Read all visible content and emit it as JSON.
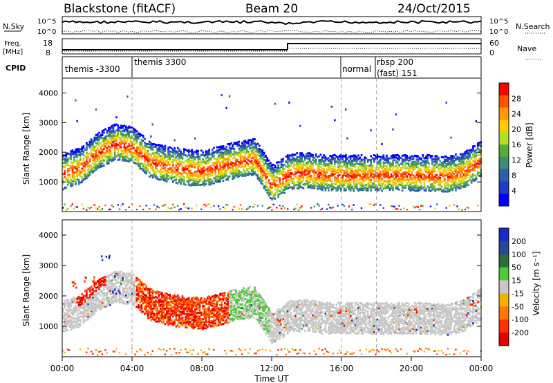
{
  "header": {
    "station": "Blackstone (fitACF)",
    "beam": "Beam 20",
    "date": "24/Oct/2015"
  },
  "strips": {
    "nsky_label": "N.Sky",
    "nsearch_label": "N.Search",
    "nsky_ticks": [
      "10^5",
      "10^0"
    ],
    "nsearch_ticks": [
      "10^5",
      "10^0"
    ],
    "freq_label_1": "Freq.",
    "freq_label_2": "[MHz]",
    "freq_ticks": [
      "18",
      "8"
    ],
    "nave_label": "Nave",
    "nave_ticks": [
      "60",
      "0"
    ],
    "cpid_label": "CPID",
    "cpid_segments": [
      {
        "label": "themis -3300",
        "start_hour": 0.0,
        "end_hour": 4.0
      },
      {
        "label": "themis 3300",
        "start_hour": 4.0,
        "end_hour": 16.0
      },
      {
        "label": "normal",
        "start_hour": 16.0,
        "end_hour": 18.0
      },
      {
        "label": "rbsp 200",
        "label2": "(fast) 151",
        "start_hour": 18.0,
        "end_hour": 24.0
      }
    ]
  },
  "panels": {
    "power": {
      "ylabel": "Slant Range [km]",
      "cbar_label": "Power [dB]",
      "cbar_ticks": [
        "28",
        "24",
        "20",
        "16",
        "12",
        "8",
        "4"
      ],
      "cbar_colors": [
        "#ff0000",
        "#ff5500",
        "#ff9900",
        "#ffcc00",
        "#b4dc28",
        "#5aaa3c",
        "#3c8c78",
        "#2c5fa8",
        "#1e3cc8",
        "#0000ff"
      ]
    },
    "velocity": {
      "ylabel": "Slant Range [km]",
      "cbar_label": "Velocity [m s⁻¹]",
      "cbar_ticks": [
        "200",
        "100",
        "50",
        "15",
        "-15",
        "-50",
        "-100",
        "-200"
      ],
      "cbar_colors": [
        "#1e28c8",
        "#28469a",
        "#2c6e3c",
        "#50c83c",
        "#c8c8c8",
        "#f0b400",
        "#ff7800",
        "#ff3200",
        "#e60000"
      ]
    },
    "y_ticks": [
      "4000",
      "3000",
      "2000",
      "1000"
    ]
  },
  "xaxis": {
    "label": "Time UT",
    "ticks": [
      "00:00",
      "04:00",
      "08:00",
      "12:00",
      "16:00",
      "20:00",
      "00:00"
    ]
  },
  "chart_data": [
    {
      "type": "heatmap",
      "title": "Blackstone (fitACF)",
      "subtitle": "Beam 20 24/Oct/2015",
      "xlabel": "Time UT",
      "ylabel": "Slant Range [km]",
      "xlim": [
        0,
        24
      ],
      "ylim": [
        0,
        4500
      ],
      "colorbar": {
        "label": "Power [dB]",
        "range": [
          0,
          30
        ]
      },
      "series": [
        {
          "x": [
            0.0,
            1.0,
            2.0,
            3.0,
            4.0,
            5.0,
            6.0,
            7.0,
            8.0,
            9.0,
            10.0,
            11.0,
            12.0,
            13.0,
            14.0,
            15.0,
            16.0,
            17.0,
            18.0,
            19.0,
            20.0,
            21.0,
            22.0,
            23.0,
            24.0
          ],
          "y": [
            1300,
            1500,
            2000,
            2300,
            2200,
            1700,
            1550,
            1450,
            1400,
            1550,
            1700,
            1800,
            900,
            1300,
            1350,
            1250,
            1250,
            1250,
            1250,
            1250,
            1250,
            1250,
            1200,
            1350,
            1750
          ]
        }
      ]
    },
    {
      "type": "heatmap",
      "title": "Blackstone (fitACF)",
      "xlabel": "Time UT",
      "ylabel": "Slant Range [km]",
      "xlim": [
        0,
        24
      ],
      "ylim": [
        0,
        4500
      ],
      "colorbar": {
        "label": "Velocity [m s⁻¹]",
        "range": [
          -200,
          200
        ]
      },
      "series": [
        {
          "x": [
            0.5,
            1.5,
            2.5,
            3.0,
            5.0,
            6.0,
            7.0,
            8.0,
            9.0,
            12.5,
            16.0,
            20.0,
            23.5
          ],
          "y": [
            2400,
            2600,
            3300,
            2200,
            1700,
            1650,
            1750,
            1850,
            1500,
            1200,
            1500,
            1500,
            1800
          ]
        }
      ]
    }
  ]
}
